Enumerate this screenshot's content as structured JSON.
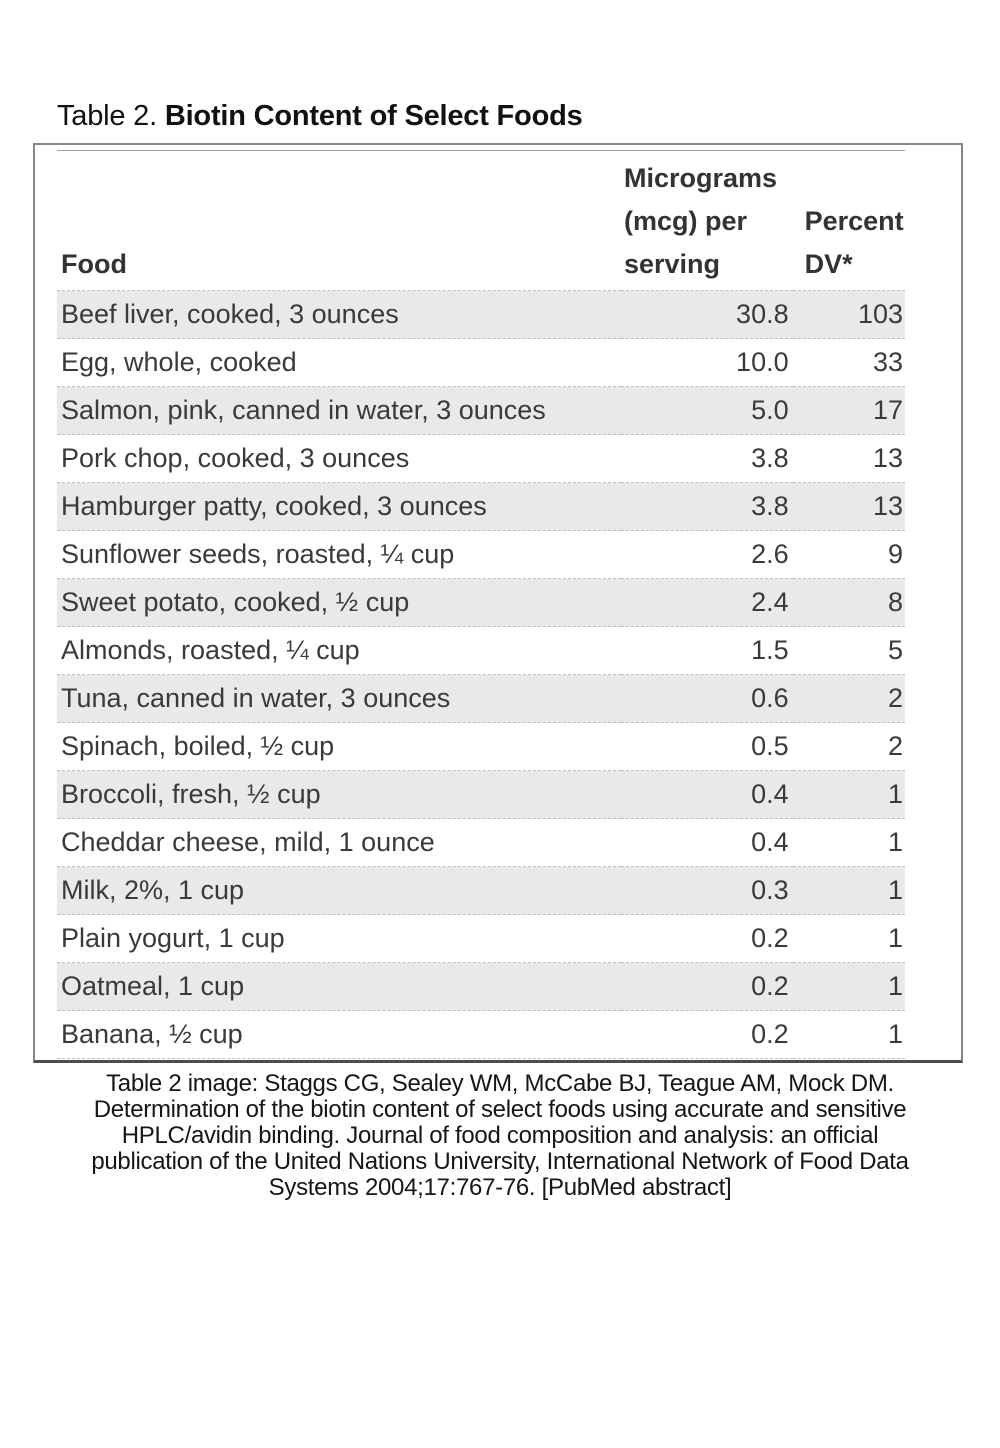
{
  "page": {
    "title_prefix": "Table 2. ",
    "title": "Biotin Content of Select Foods"
  },
  "table": {
    "columns": {
      "food": "Food",
      "mcg": "Micrograms (mcg) per serving",
      "dv": "Percent DV*"
    },
    "rows": [
      {
        "food": "Beef liver, cooked, 3 ounces",
        "mcg": "30.8",
        "dv": "103"
      },
      {
        "food": "Egg, whole, cooked",
        "mcg": "10.0",
        "dv": "33"
      },
      {
        "food": "Salmon, pink, canned in water, 3 ounces",
        "mcg": "5.0",
        "dv": "17"
      },
      {
        "food": "Pork chop, cooked, 3 ounces",
        "mcg": "3.8",
        "dv": "13"
      },
      {
        "food": "Hamburger patty, cooked, 3 ounces",
        "mcg": "3.8",
        "dv": "13"
      },
      {
        "food": "Sunflower seeds, roasted, ¼ cup",
        "mcg": "2.6",
        "dv": "9"
      },
      {
        "food": "Sweet potato, cooked, ½ cup",
        "mcg": "2.4",
        "dv": "8"
      },
      {
        "food": "Almonds, roasted, ¼ cup",
        "mcg": "1.5",
        "dv": "5"
      },
      {
        "food": "Tuna, canned in water, 3 ounces",
        "mcg": "0.6",
        "dv": "2"
      },
      {
        "food": "Spinach, boiled, ½ cup",
        "mcg": "0.5",
        "dv": "2"
      },
      {
        "food": "Broccoli, fresh, ½ cup",
        "mcg": "0.4",
        "dv": "1"
      },
      {
        "food": "Cheddar cheese, mild, 1 ounce",
        "mcg": "0.4",
        "dv": "1"
      },
      {
        "food": "Milk, 2%, 1 cup",
        "mcg": "0.3",
        "dv": "1"
      },
      {
        "food": "Plain yogurt, 1 cup",
        "mcg": "0.2",
        "dv": "1"
      },
      {
        "food": "Oatmeal, 1 cup",
        "mcg": "0.2",
        "dv": "1"
      },
      {
        "food": "Banana, ½ cup",
        "mcg": "0.2",
        "dv": "1"
      }
    ]
  },
  "footer": {
    "citation_lines": [
      "Table 2 image: Staggs CG, Sealey WM, McCabe BJ, Teague AM, Mock DM.",
      "Determination of the biotin content of select foods using accurate and sensitive",
      "HPLC/avidin binding. Journal of food composition and analysis: an official",
      "publication of the United Nations University, International Network of Food Data",
      "Systems 2004;17:767-76. [PubMed abstract]"
    ]
  },
  "colors": {
    "row_shade": "#e9e9e9",
    "dash": "#c0c0c0",
    "border": "#868686",
    "border_bottom": "#4d4d4d",
    "header_rule": "#9c9c9c",
    "text": "#3a3a3a"
  }
}
